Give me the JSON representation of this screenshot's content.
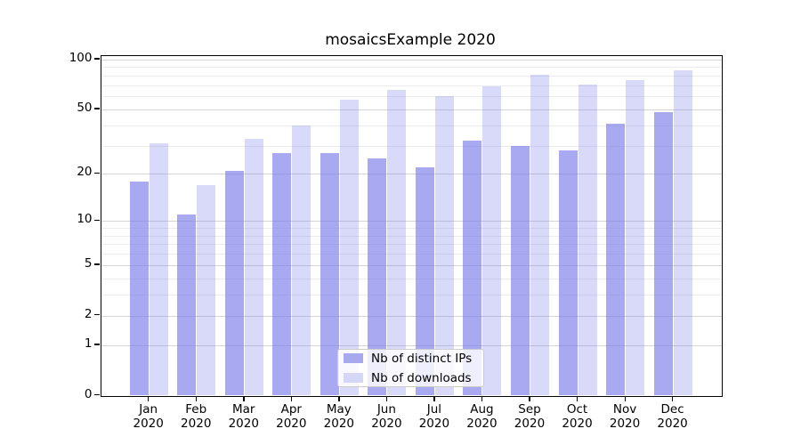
{
  "title": "mosaicsExample 2020",
  "chart_data": {
    "type": "bar",
    "title": "mosaicsExample 2020",
    "categories": [
      "Jan",
      "Feb",
      "Mar",
      "Apr",
      "May",
      "Jun",
      "Jul",
      "Aug",
      "Sep",
      "Oct",
      "Nov",
      "Dec"
    ],
    "x_year": "2020",
    "series": [
      {
        "name": "Nb of distinct IPs",
        "base_color": "#7878eb",
        "alpha": 0.64,
        "swatch_color": "#a8a8ee",
        "values": [
          18,
          11,
          21,
          27,
          27,
          25,
          22,
          32,
          30,
          28,
          41,
          48
        ]
      },
      {
        "name": "Nb of downloads",
        "base_color": "#7878eb",
        "alpha": 0.28,
        "swatch_color": "#d6d6f7",
        "values": [
          31,
          17,
          33,
          40,
          57,
          66,
          60,
          69,
          81,
          71,
          75,
          86
        ]
      }
    ],
    "yscale": "symlog-ln(1+y)",
    "ylim": [
      0,
      105
    ],
    "y_ticks": [
      0,
      1,
      2,
      5,
      10,
      20,
      50,
      100
    ],
    "y_major_gridlines": [
      1,
      2,
      5,
      10,
      20,
      50,
      100
    ],
    "y_minor_gridlines": [
      3,
      4,
      6,
      7,
      8,
      9,
      30,
      40,
      60,
      70,
      80,
      90
    ],
    "grid": true,
    "legend_position": "lower center",
    "xlabel": "",
    "ylabel": ""
  },
  "colors": {
    "axis": "#000000",
    "grid_major": "#d4d4d4",
    "grid_minor": "#ececec",
    "text": "#000000",
    "background": "#ffffff"
  }
}
